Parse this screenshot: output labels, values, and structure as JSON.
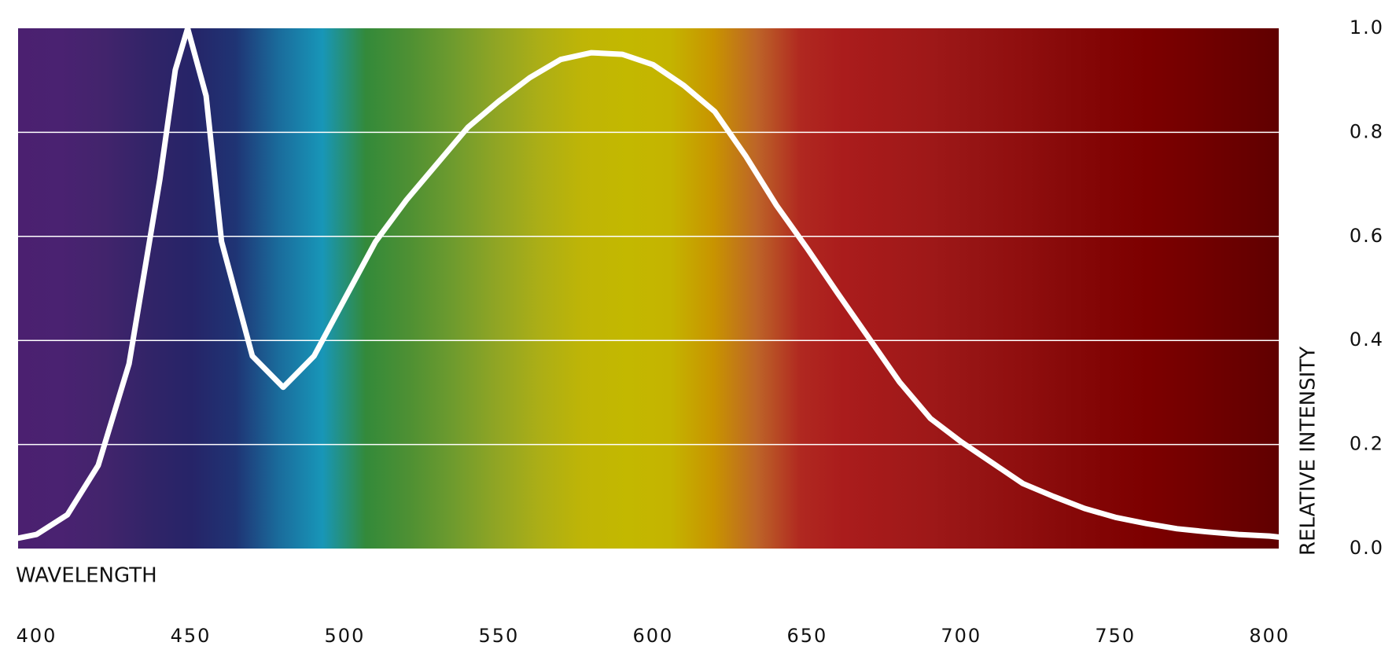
{
  "chart_data": {
    "type": "line",
    "x_label": "WAVELENGTH",
    "y_label": "RELATIVE INTENSITY",
    "x": [
      394,
      400,
      410,
      420,
      430,
      440,
      445,
      449,
      455,
      460,
      470,
      480,
      490,
      500,
      510,
      520,
      530,
      540,
      550,
      560,
      570,
      580,
      590,
      600,
      610,
      620,
      630,
      640,
      650,
      660,
      670,
      680,
      690,
      700,
      710,
      720,
      730,
      740,
      750,
      760,
      770,
      780,
      790,
      800,
      803
    ],
    "series": [
      {
        "color": "#ffffff",
        "values": [
          0.02,
          0.027,
          0.065,
          0.16,
          0.355,
          0.71,
          0.92,
          1.0,
          0.87,
          0.59,
          0.37,
          0.31,
          0.37,
          0.48,
          0.59,
          0.67,
          0.74,
          0.81,
          0.86,
          0.905,
          0.94,
          0.953,
          0.95,
          0.93,
          0.89,
          0.84,
          0.755,
          0.66,
          0.577,
          0.49,
          0.405,
          0.32,
          0.25,
          0.205,
          0.165,
          0.125,
          0.1,
          0.077,
          0.06,
          0.048,
          0.038,
          0.032,
          0.027,
          0.024,
          0.022
        ]
      }
    ],
    "xlim": [
      394,
      803
    ],
    "xticks": [
      400,
      450,
      500,
      550,
      600,
      650,
      700,
      750,
      800
    ],
    "ylim": [
      0,
      1
    ],
    "yticks": [
      {
        "value": 1,
        "label": "1.0"
      },
      0.8,
      0.6,
      0.4,
      0.2,
      {
        "value": 0,
        "label": "0.0"
      }
    ],
    "grid": true,
    "grid_color": "#ffffff",
    "background_colors": [
      "#4b2070",
      "#4a2271",
      "#42246c",
      "#322468",
      "#262468",
      "#1f3474",
      "#1a6c9c",
      "#1896b8",
      "#338a3a",
      "#4e9033",
      "#6e9b2e",
      "#90a524",
      "#acae16",
      "#bfb506",
      "#c3b800",
      "#c4b400",
      "#c89400",
      "#bd6428",
      "#b02820",
      "#aa1c1c",
      "#a41a1a",
      "#9e1818",
      "#961414",
      "#900f0f",
      "#880a0a",
      "#820404",
      "#7c0000",
      "#740000",
      "#6a0000",
      "#600000"
    ]
  }
}
